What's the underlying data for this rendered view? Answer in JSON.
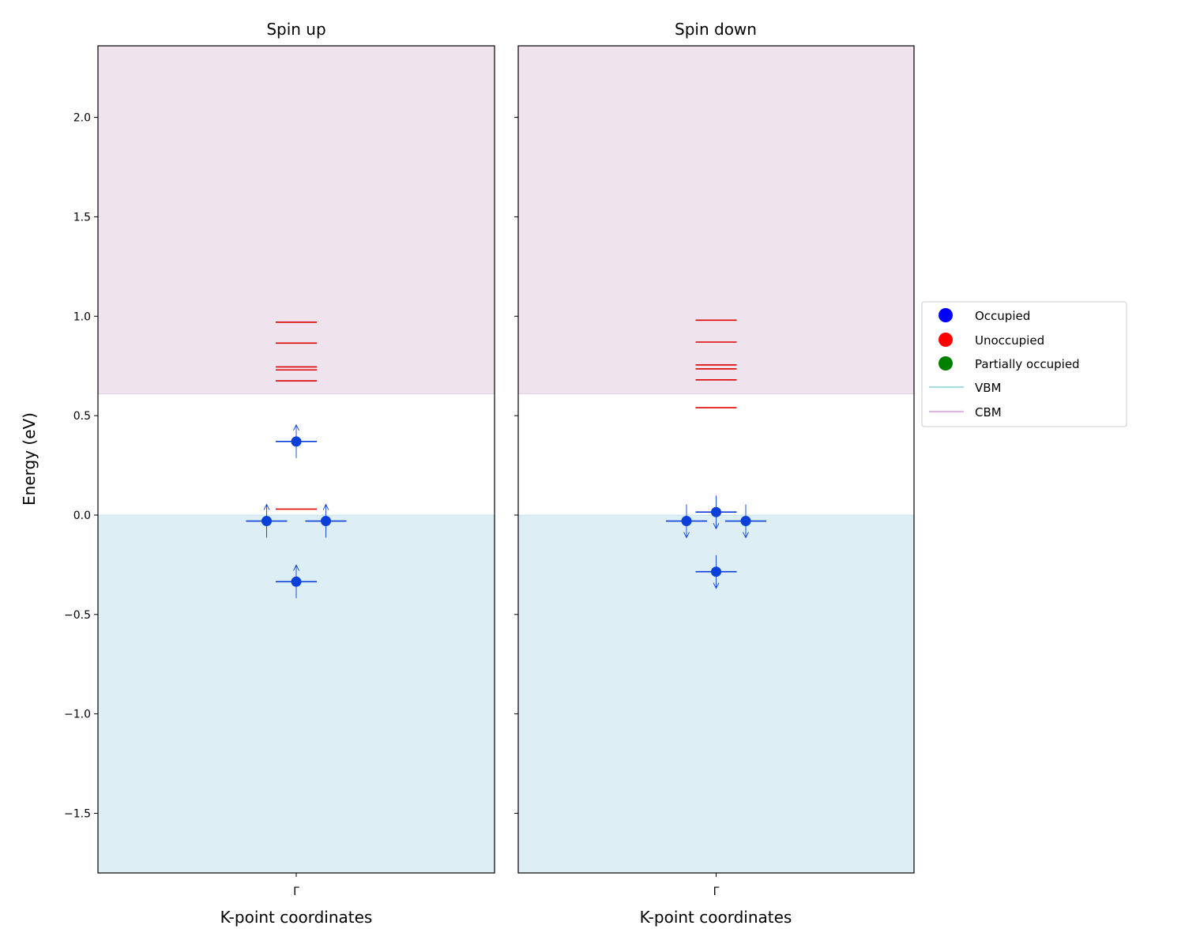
{
  "chart_data": {
    "type": "scatter",
    "ylabel": "Energy (eV)",
    "xlabel": "K-point coordinates",
    "ylim": [
      -1.8,
      2.36
    ],
    "yticks": [
      -1.5,
      -1.0,
      -0.5,
      0.0,
      0.5,
      1.0,
      1.5,
      2.0
    ],
    "ytick_labels": [
      "−1.5",
      "−1.0",
      "−0.5",
      "0.0",
      "0.5",
      "1.0",
      "1.5",
      "2.0"
    ],
    "vbm": 0.0,
    "cbm": 0.61,
    "colors": {
      "occupied": "#0a3fd8",
      "unoccupied": "#dd0000",
      "vbm_fill": "#ddeef5",
      "cbm_fill": "#efe3ed",
      "legend_occupied": "#0000ff",
      "legend_unoccupied": "#ff0000",
      "legend_partial": "#008000",
      "legend_vbm": "#a8dde6",
      "legend_cbm": "#dcb8dc"
    },
    "panels": [
      {
        "title": "Spin up",
        "xtick": "Γ",
        "spin": "up",
        "occupied": [
          {
            "k": 0.0,
            "energy": 0.37
          },
          {
            "k": -0.15,
            "energy": -0.03
          },
          {
            "k": 0.15,
            "energy": -0.03
          },
          {
            "k": 0.0,
            "energy": -0.335
          }
        ],
        "unoccupied": [
          0.97,
          0.865,
          0.745,
          0.73,
          0.675,
          0.03
        ]
      },
      {
        "title": "Spin down",
        "xtick": "Γ",
        "spin": "down",
        "occupied": [
          {
            "k": 0.0,
            "energy": 0.015
          },
          {
            "k": -0.15,
            "energy": -0.03
          },
          {
            "k": 0.15,
            "energy": -0.03
          },
          {
            "k": 0.0,
            "energy": -0.285
          }
        ],
        "unoccupied": [
          0.98,
          0.87,
          0.755,
          0.735,
          0.68,
          0.54
        ]
      }
    ],
    "legend": {
      "position": "center right",
      "entries": [
        {
          "label": "Occupied",
          "marker": "dot",
          "color_key": "legend_occupied"
        },
        {
          "label": "Unoccupied",
          "marker": "dot",
          "color_key": "legend_unoccupied"
        },
        {
          "label": "Partially occupied",
          "marker": "dot",
          "color_key": "legend_partial"
        },
        {
          "label": "VBM",
          "marker": "line",
          "color_key": "legend_vbm"
        },
        {
          "label": "CBM",
          "marker": "line",
          "color_key": "legend_cbm"
        }
      ]
    }
  }
}
